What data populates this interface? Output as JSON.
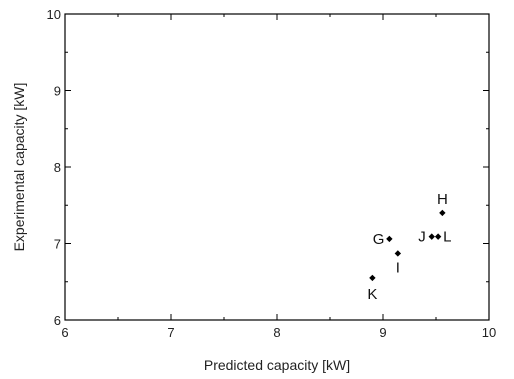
{
  "chart_data": {
    "type": "scatter",
    "xlabel": "Predicted capacity [kW]",
    "ylabel": "Experimental capacity [kW]",
    "xlim": [
      6,
      10
    ],
    "ylim": [
      6,
      10
    ],
    "xticks": [
      "6",
      "7",
      "8",
      "9",
      "10"
    ],
    "yticks": [
      "6",
      "7",
      "8",
      "9",
      "10"
    ],
    "grid": false,
    "legend": "none",
    "points": [
      {
        "label": "G",
        "x": 9.06,
        "y": 7.06
      },
      {
        "label": "H",
        "x": 9.56,
        "y": 7.4
      },
      {
        "label": "I",
        "x": 9.14,
        "y": 6.87
      },
      {
        "label": "J",
        "x": 9.46,
        "y": 7.09
      },
      {
        "label": "L",
        "x": 9.52,
        "y": 7.09
      },
      {
        "label": "K",
        "x": 8.9,
        "y": 6.55
      }
    ]
  }
}
